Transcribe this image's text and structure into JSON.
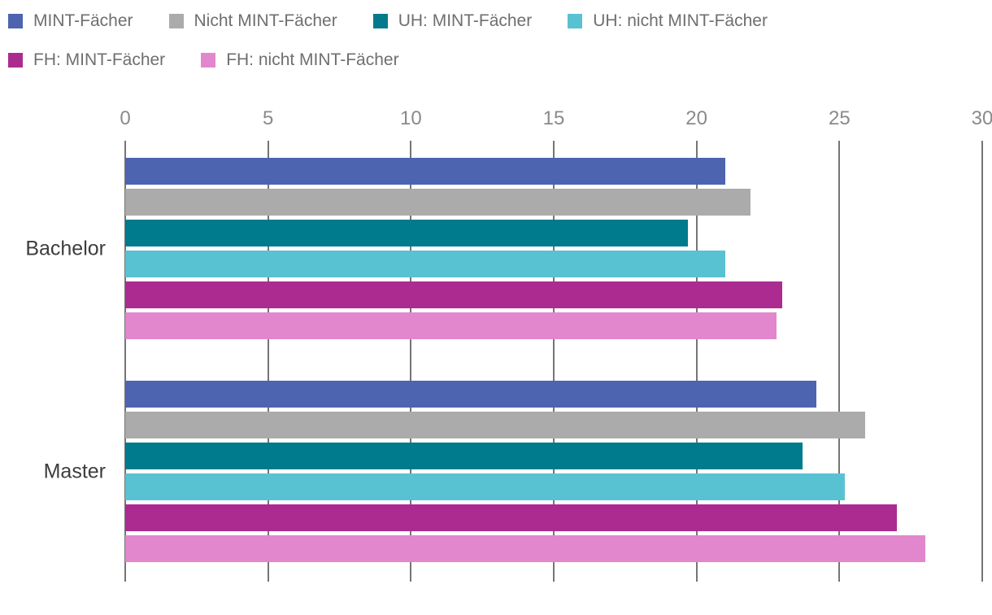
{
  "page": {
    "background": "#ffffff"
  },
  "legend": {
    "position": "top-left",
    "items": [
      {
        "label": "MINT-Fächer",
        "color": "#4D64B0"
      },
      {
        "label": "Nicht MINT-Fächer",
        "color": "#ABABAB"
      },
      {
        "label": "UH: MINT-Fächer",
        "color": "#007A8D"
      },
      {
        "label": "UH: nicht MINT-Fächer",
        "color": "#59C2D2"
      },
      {
        "label": "FH: MINT-Fächer",
        "color": "#AC2B90"
      },
      {
        "label": "FH: nicht MINT-Fächer",
        "color": "#E287CD"
      }
    ]
  },
  "chart_data": {
    "type": "bar",
    "orientation": "horizontal",
    "title": "",
    "xlabel": "",
    "ylabel": "",
    "categories": [
      "Bachelor",
      "Master"
    ],
    "series": [
      {
        "name": "MINT-Fächer",
        "color": "#4D64B0",
        "values": [
          21.0,
          24.2
        ]
      },
      {
        "name": "Nicht MINT-Fächer",
        "color": "#ABABAB",
        "values": [
          21.9,
          25.9
        ]
      },
      {
        "name": "UH: MINT-Fächer",
        "color": "#007A8D",
        "values": [
          19.7,
          23.7
        ]
      },
      {
        "name": "UH: nicht MINT-Fächer",
        "color": "#59C2D2",
        "values": [
          21.0,
          25.2
        ]
      },
      {
        "name": "FH: MINT-Fächer",
        "color": "#AC2B90",
        "values": [
          23.0,
          27.0
        ]
      },
      {
        "name": "FH: nicht MINT-Fächer",
        "color": "#E287CD",
        "values": [
          22.8,
          28.0
        ]
      }
    ],
    "x_ticks": [
      0,
      5,
      10,
      15,
      20,
      25,
      30
    ],
    "xlim": [
      0,
      30
    ],
    "grid": "vertical",
    "axis_color": "#757575",
    "tick_label_color": "#8a8a8a",
    "legend_position": "top-left"
  }
}
